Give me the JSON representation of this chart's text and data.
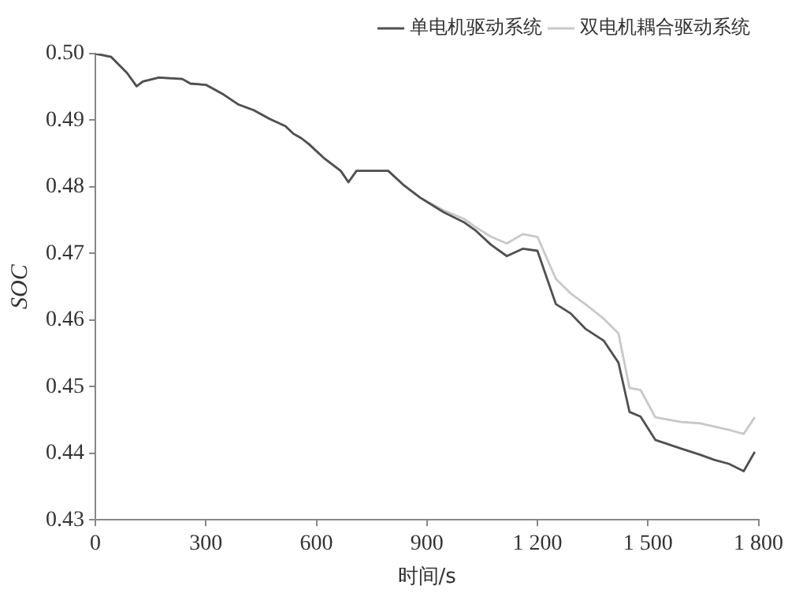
{
  "chart_data": {
    "type": "line",
    "xlabel": "时间/s",
    "ylabel": "SOC",
    "x": [
      0,
      43,
      86,
      112,
      129,
      172,
      236,
      258,
      301,
      344,
      387,
      430,
      473,
      516,
      537,
      559,
      580,
      623,
      666,
      687,
      709,
      795,
      838,
      881,
      945,
      1000,
      1031,
      1074,
      1117,
      1160,
      1200,
      1250,
      1290,
      1330,
      1380,
      1420,
      1450,
      1480,
      1520,
      1590,
      1640,
      1680,
      1720,
      1760,
      1790
    ],
    "series": [
      {
        "name": "单电机驱动系统",
        "color": "#505050",
        "values": [
          0.5,
          0.4995,
          0.4971,
          0.4951,
          0.4958,
          0.4964,
          0.4962,
          0.4955,
          0.4953,
          0.494,
          0.4924,
          0.4915,
          0.4902,
          0.4891,
          0.488,
          0.4873,
          0.4864,
          0.4842,
          0.4824,
          0.4807,
          0.4824,
          0.4824,
          0.4802,
          0.4784,
          0.4762,
          0.4747,
          0.4735,
          0.4713,
          0.4696,
          0.4707,
          0.4704,
          0.4624,
          0.461,
          0.4587,
          0.4569,
          0.4536,
          0.4462,
          0.4455,
          0.442,
          0.4407,
          0.4398,
          0.439,
          0.4384,
          0.4373,
          0.4402
        ]
      },
      {
        "name": "双电机耦合驱动系统",
        "color": "#c8c8c8",
        "values": [
          0.5,
          0.4995,
          0.4971,
          0.4951,
          0.4958,
          0.4964,
          0.4962,
          0.4955,
          0.4953,
          0.494,
          0.4924,
          0.4915,
          0.4902,
          0.4891,
          0.488,
          0.4873,
          0.4864,
          0.4842,
          0.4824,
          0.4807,
          0.4824,
          0.4824,
          0.4802,
          0.4784,
          0.4765,
          0.4752,
          0.474,
          0.4725,
          0.4715,
          0.4729,
          0.4725,
          0.4662,
          0.464,
          0.4624,
          0.4602,
          0.458,
          0.4498,
          0.4495,
          0.4454,
          0.4447,
          0.4445,
          0.444,
          0.4435,
          0.4429,
          0.4454
        ]
      }
    ],
    "xlim": [
      0,
      1800
    ],
    "xticks": [
      0,
      300,
      600,
      900,
      {
        "value": 1200,
        "label": "1 200"
      },
      {
        "value": 1500,
        "label": "1 500"
      },
      {
        "value": 1800,
        "label": "1 800"
      }
    ],
    "ylim": [
      0.43,
      0.5
    ],
    "yticks": [
      {
        "value": 0.43,
        "label": "0.43"
      },
      {
        "value": 0.44,
        "label": "0.44"
      },
      {
        "value": 0.45,
        "label": "0.45"
      },
      {
        "value": 0.46,
        "label": "0.46"
      },
      {
        "value": 0.47,
        "label": "0.47"
      },
      {
        "value": 0.48,
        "label": "0.48"
      },
      {
        "value": 0.49,
        "label": "0.49"
      },
      {
        "value": 0.5,
        "label": "0.50"
      }
    ],
    "grid": false,
    "legend": "top right",
    "marker": "none",
    "line_style": "solid"
  }
}
